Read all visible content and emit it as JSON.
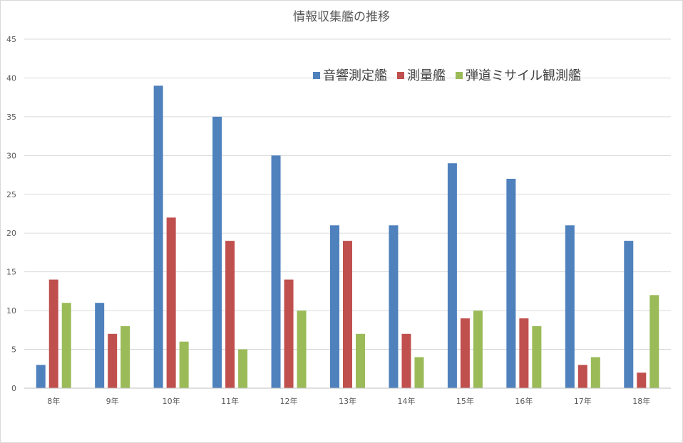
{
  "chart_data": {
    "type": "bar",
    "title": "情報収集艦の推移",
    "xlabel": "",
    "ylabel": "",
    "ylim": [
      0,
      45
    ],
    "yticks": [
      0,
      5,
      10,
      15,
      20,
      25,
      30,
      35,
      40,
      45
    ],
    "grid": true,
    "legend_position": "top-right",
    "categories": [
      "8年",
      "9年",
      "10年",
      "11年",
      "12年",
      "13年",
      "14年",
      "15年",
      "16年",
      "17年",
      "18年"
    ],
    "series": [
      {
        "name": "音響測定艦",
        "color": "#4f81bd",
        "values": [
          3,
          11,
          39,
          35,
          30,
          21,
          21,
          29,
          27,
          21,
          19
        ]
      },
      {
        "name": "測量艦",
        "color": "#c0504d",
        "values": [
          14,
          7,
          22,
          19,
          14,
          19,
          7,
          9,
          9,
          3,
          2
        ]
      },
      {
        "name": "弾道ミサイル観測艦",
        "color": "#9bbb59",
        "values": [
          11,
          8,
          6,
          5,
          10,
          7,
          4,
          10,
          8,
          4,
          12
        ]
      }
    ]
  }
}
